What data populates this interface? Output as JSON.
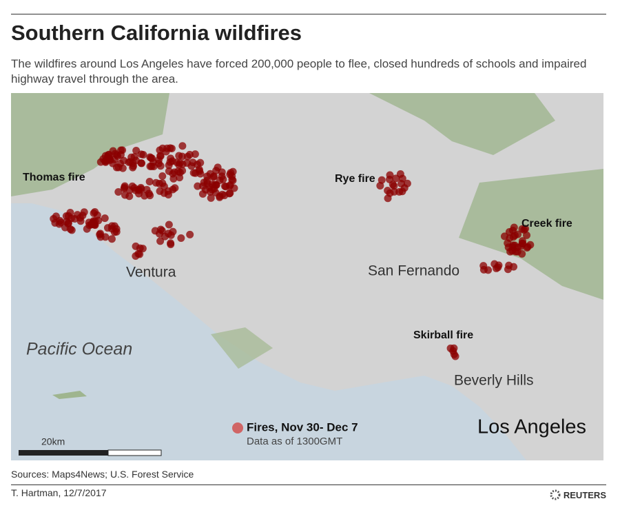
{
  "header": {
    "title": "Southern California wildfires",
    "subtitle": "The wildfires around Los Angeles have forced 200,000 people to flee, closed hundreds of schools and impaired highway travel through the area."
  },
  "map": {
    "fire_labels": [
      "Thomas fire",
      "Rye fire",
      "Creek fire",
      "Skirball fire"
    ],
    "place_labels": [
      "Ventura",
      "San Fernando",
      "Beverly Hills",
      "Los Angeles"
    ],
    "ocean_label": "Pacific Ocean",
    "legend": {
      "title": "Fires, Nov 30- Dec 7",
      "note": "Data as of 1300GMT"
    },
    "scale_label": "20km"
  },
  "footer": {
    "sources": "Sources: Maps4News; U.S. Forest Service",
    "credit": "T. Hartman,  12/7/2017",
    "logo": "REUTERS"
  }
}
